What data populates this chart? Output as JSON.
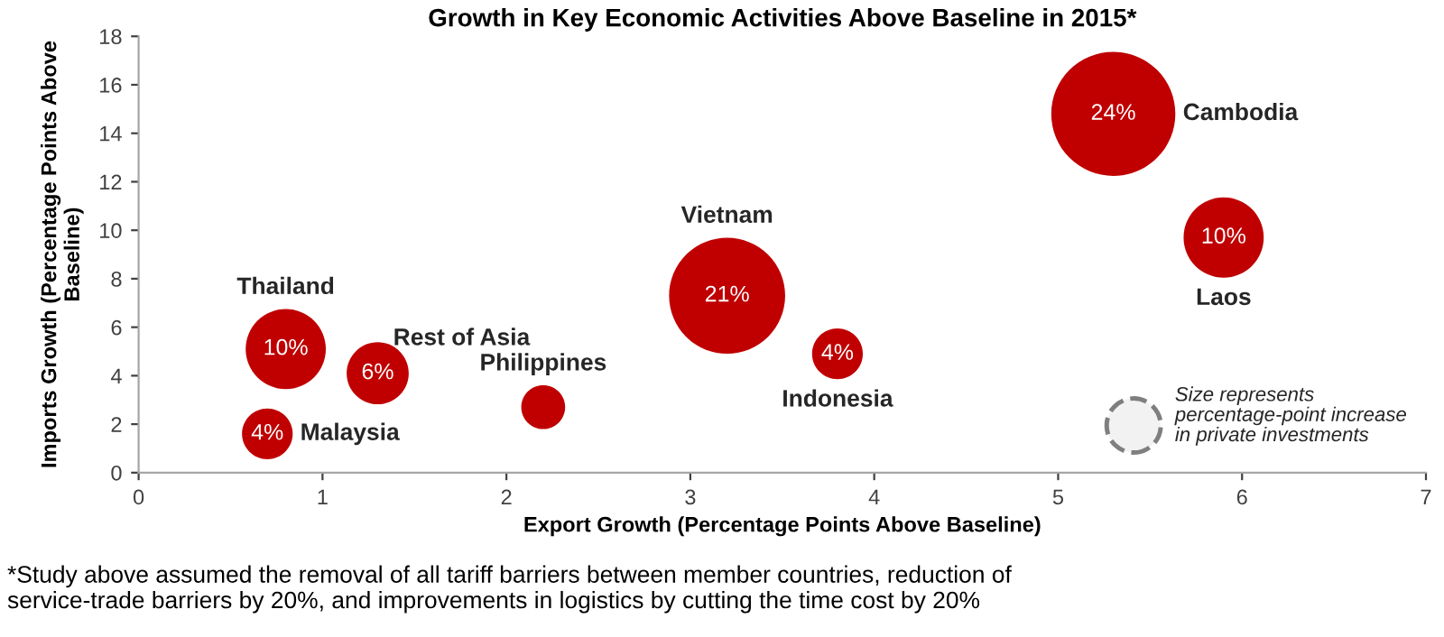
{
  "chart_data": {
    "type": "bubble",
    "title": "Growth in Key Economic Activities Above Baseline in 2015*",
    "xlabel": "Export Growth (Percentage Points Above Baseline)",
    "ylabel": "Imports Growth (Percentage Points Above\nBaseline)",
    "xlim": [
      0,
      7
    ],
    "xticks": [
      0,
      1,
      2,
      3,
      4,
      5,
      6,
      7
    ],
    "ylim": [
      0,
      18
    ],
    "yticks": [
      0,
      2,
      4,
      6,
      8,
      10,
      12,
      14,
      16,
      18
    ],
    "series": [
      {
        "name": "Thailand",
        "color": "#c00000",
        "x": [
          0.8
        ],
        "values": [
          5.1
        ],
        "sizes": [
          0.417
        ]
      },
      {
        "name": "Malaysia",
        "color": "#c00000",
        "x": [
          0.7
        ],
        "values": [
          1.6
        ],
        "sizes": [
          0.167
        ]
      },
      {
        "name": "Rest of Asia",
        "color": "#c00000",
        "x": [
          1.3
        ],
        "values": [
          4.1
        ],
        "sizes": [
          0.25
        ]
      },
      {
        "name": "Philippines",
        "color": "#c00000",
        "x": [
          2.2
        ],
        "values": [
          2.7
        ],
        "sizes": [
          0.125
        ]
      },
      {
        "name": "Vietnam",
        "color": "#c00000",
        "x": [
          3.2
        ],
        "values": [
          7.3
        ],
        "sizes": [
          0.875
        ]
      },
      {
        "name": "Indonesia",
        "color": "#c00000",
        "x": [
          3.8
        ],
        "values": [
          4.9
        ],
        "sizes": [
          0.167
        ]
      },
      {
        "name": "Cambodia",
        "color": "#c00000",
        "x": [
          5.3
        ],
        "values": [
          14.8
        ],
        "sizes": [
          1
        ]
      },
      {
        "name": "Laos",
        "color": "#c00000",
        "x": [
          5.9
        ],
        "values": [
          9.7
        ],
        "sizes": [
          0.417
        ]
      }
    ],
    "annotations": [
      {
        "text": "10%",
        "x": 0.8,
        "y": 5.1
      },
      {
        "text": "4%",
        "x": 0.7,
        "y": 1.6
      },
      {
        "text": "6%",
        "x": 1.3,
        "y": 4.1
      },
      {
        "text": "21%",
        "x": 3.2,
        "y": 7.3
      },
      {
        "text": "4%",
        "x": 3.8,
        "y": 4.9
      },
      {
        "text": "24%",
        "x": 5.3,
        "y": 14.8
      },
      {
        "text": "10%",
        "x": 5.9,
        "y": 9.7
      },
      "Size represents\npercentage-point increase\nin private investments",
      "*Study above assumed the removal of all tariff barriers between member countries, reduction of\nservice-trade barriers by 20%, and improvements in logistics by cutting the time cost by 20%"
    ]
  }
}
